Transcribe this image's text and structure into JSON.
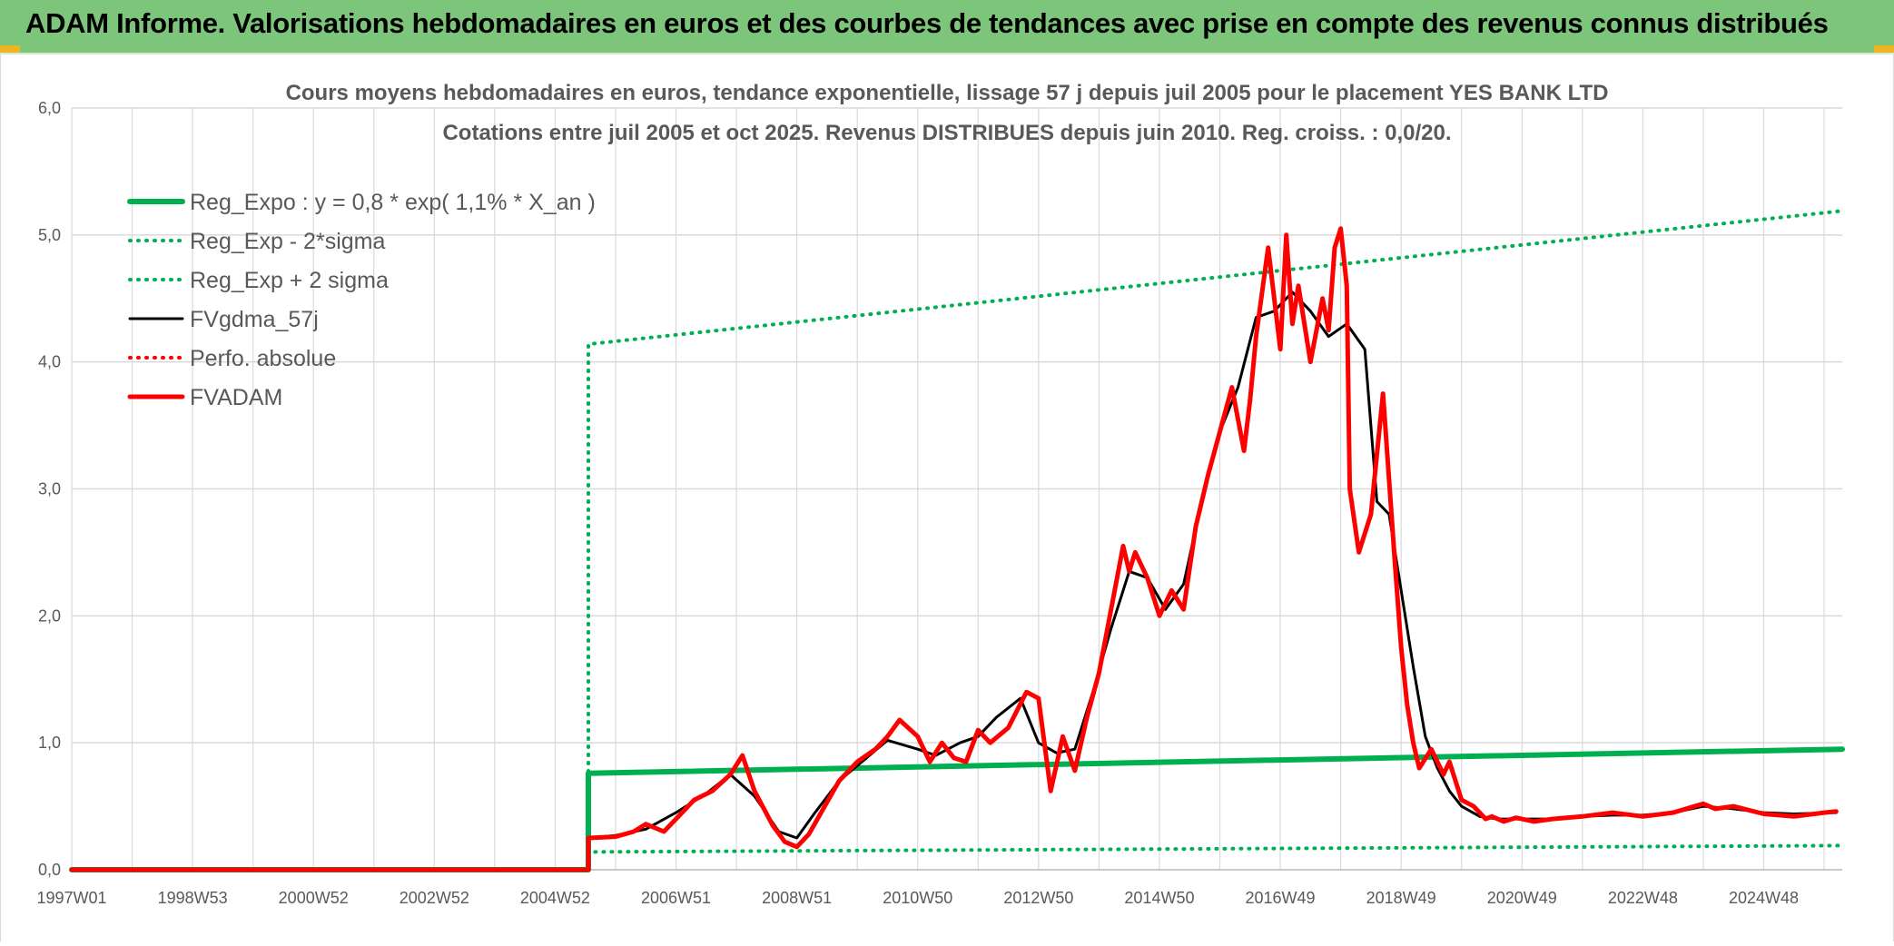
{
  "banner": {
    "title": "ADAM Informe. Valorisations hebdomadaires en euros et des courbes de tendances avec prise en compte des revenus connus distribués"
  },
  "colors": {
    "banner_bg": "#7cc57a",
    "green": "#00b050",
    "red": "#ff0000",
    "black": "#000000",
    "grid": "#d9d9d9"
  },
  "chart_data": {
    "type": "line",
    "title": "Cours moyens hebdomadaires en euros, tendance exponentielle, lissage 57 j depuis juil 2005 pour le placement YES BANK LTD",
    "subtitle": "Cotations entre juil 2005 et oct 2025. Revenus DISTRIBUES depuis juin 2010. Reg. croiss. : 0,0/20.",
    "xlabel": "",
    "ylabel": "",
    "ylim": [
      0,
      6
    ],
    "xlim": [
      1997.0,
      2026.3
    ],
    "y_ticks": [
      "0,0",
      "1,0",
      "2,0",
      "3,0",
      "4,0",
      "5,0",
      "6,0"
    ],
    "x_ticks": [
      {
        "label": "1997W01",
        "x": 1997.0
      },
      {
        "label": "1998W53",
        "x": 1999.0
      },
      {
        "label": "2000W52",
        "x": 2001.0
      },
      {
        "label": "2002W52",
        "x": 2003.0
      },
      {
        "label": "2004W52",
        "x": 2005.0
      },
      {
        "label": "2006W51",
        "x": 2007.0
      },
      {
        "label": "2008W51",
        "x": 2009.0
      },
      {
        "label": "2010W50",
        "x": 2011.0
      },
      {
        "label": "2012W50",
        "x": 2013.0
      },
      {
        "label": "2014W50",
        "x": 2015.0
      },
      {
        "label": "2016W49",
        "x": 2017.0
      },
      {
        "label": "2018W49",
        "x": 2019.0
      },
      {
        "label": "2020W49",
        "x": 2021.0
      },
      {
        "label": "2022W48",
        "x": 2023.0
      },
      {
        "label": "2024W48",
        "x": 2025.0
      }
    ],
    "grid": true,
    "legend_position": "top-left",
    "series": [
      {
        "name": "Reg_Expo : y = 0,8 * exp( 1,1% *  X_an )",
        "color": "#00b050",
        "style": "solid",
        "width": 6,
        "x": [
          1997.0,
          2005.55,
          2005.55,
          2026.3
        ],
        "y": [
          0.0,
          0.0,
          0.76,
          0.95
        ]
      },
      {
        "name": "Reg_Exp - 2*sigma",
        "color": "#00b050",
        "style": "dotted",
        "width": 4,
        "x": [
          2005.55,
          2005.55,
          2026.3
        ],
        "y": [
          0.0,
          0.14,
          0.19
        ]
      },
      {
        "name": "Reg_Exp + 2 sigma",
        "color": "#00b050",
        "style": "dotted",
        "width": 4,
        "x": [
          2005.55,
          2005.55,
          2026.3
        ],
        "y": [
          0.0,
          4.14,
          5.19
        ]
      },
      {
        "name": "FVgdma_57j",
        "color": "#000000",
        "style": "solid",
        "width": 3,
        "x": [
          2005.55,
          2006.0,
          2006.5,
          2007.0,
          2007.5,
          2007.9,
          2008.3,
          2008.7,
          2009.0,
          2009.3,
          2009.7,
          2010.0,
          2010.5,
          2011.0,
          2011.3,
          2011.7,
          2012.0,
          2012.3,
          2012.7,
          2013.0,
          2013.3,
          2013.6,
          2013.9,
          2014.2,
          2014.5,
          2014.8,
          2015.1,
          2015.4,
          2015.7,
          2016.0,
          2016.3,
          2016.6,
          2016.9,
          2017.2,
          2017.5,
          2017.8,
          2018.1,
          2018.4,
          2018.6,
          2018.8,
          2019.0,
          2019.2,
          2019.4,
          2019.6,
          2019.8,
          2020.0,
          2020.3,
          2020.6,
          2021.0,
          2021.5,
          2022.0,
          2022.5,
          2023.0,
          2023.5,
          2024.0,
          2024.5,
          2025.0,
          2025.5,
          2026.2
        ],
        "y": [
          0.25,
          0.27,
          0.32,
          0.45,
          0.6,
          0.75,
          0.58,
          0.3,
          0.25,
          0.45,
          0.7,
          0.82,
          1.02,
          0.95,
          0.9,
          1.0,
          1.05,
          1.2,
          1.35,
          1.0,
          0.92,
          0.95,
          1.4,
          1.9,
          2.35,
          2.3,
          2.05,
          2.25,
          2.9,
          3.45,
          3.8,
          4.35,
          4.4,
          4.55,
          4.4,
          4.2,
          4.3,
          4.1,
          2.9,
          2.8,
          2.2,
          1.6,
          1.05,
          0.8,
          0.62,
          0.5,
          0.42,
          0.4,
          0.4,
          0.4,
          0.42,
          0.43,
          0.43,
          0.45,
          0.5,
          0.48,
          0.45,
          0.44,
          0.45
        ]
      },
      {
        "name": "Perfo. absolue",
        "color": "#ff0000",
        "style": "dotted",
        "width": 4,
        "x": [
          1997.0,
          2005.55
        ],
        "y": [
          0.0,
          0.0
        ]
      },
      {
        "name": "FVADAM",
        "color": "#ff0000",
        "style": "solid",
        "width": 5,
        "x": [
          1997.0,
          2005.55,
          2005.55,
          2006.0,
          2006.3,
          2006.5,
          2006.8,
          2007.0,
          2007.3,
          2007.6,
          2007.9,
          2008.1,
          2008.3,
          2008.6,
          2008.8,
          2009.0,
          2009.2,
          2009.4,
          2009.7,
          2010.0,
          2010.3,
          2010.5,
          2010.7,
          2011.0,
          2011.2,
          2011.4,
          2011.6,
          2011.8,
          2012.0,
          2012.2,
          2012.5,
          2012.8,
          2013.0,
          2013.2,
          2013.4,
          2013.6,
          2013.8,
          2014.0,
          2014.2,
          2014.4,
          2014.5,
          2014.6,
          2014.8,
          2015.0,
          2015.2,
          2015.4,
          2015.6,
          2015.8,
          2016.0,
          2016.2,
          2016.4,
          2016.5,
          2016.6,
          2016.8,
          2017.0,
          2017.1,
          2017.2,
          2017.3,
          2017.5,
          2017.7,
          2017.8,
          2017.9,
          2018.0,
          2018.1,
          2018.15,
          2018.3,
          2018.5,
          2018.7,
          2018.9,
          2019.0,
          2019.1,
          2019.2,
          2019.3,
          2019.5,
          2019.7,
          2019.8,
          2020.0,
          2020.2,
          2020.4,
          2020.5,
          2020.7,
          2020.9,
          2021.2,
          2021.5,
          2022.0,
          2022.5,
          2023.0,
          2023.5,
          2024.0,
          2024.2,
          2024.5,
          2025.0,
          2025.5,
          2026.0,
          2026.2
        ],
        "y": [
          0.0,
          0.0,
          0.25,
          0.26,
          0.3,
          0.36,
          0.3,
          0.4,
          0.55,
          0.62,
          0.75,
          0.9,
          0.62,
          0.35,
          0.22,
          0.18,
          0.28,
          0.45,
          0.7,
          0.85,
          0.95,
          1.05,
          1.18,
          1.05,
          0.85,
          1.0,
          0.88,
          0.85,
          1.1,
          1.0,
          1.12,
          1.4,
          1.35,
          0.62,
          1.05,
          0.78,
          1.2,
          1.55,
          2.05,
          2.55,
          2.35,
          2.5,
          2.3,
          2.0,
          2.2,
          2.05,
          2.7,
          3.1,
          3.45,
          3.8,
          3.3,
          3.7,
          4.2,
          4.9,
          4.1,
          5.0,
          4.3,
          4.6,
          4.0,
          4.5,
          4.25,
          4.9,
          5.05,
          4.6,
          3.0,
          2.5,
          2.8,
          3.75,
          2.4,
          1.75,
          1.3,
          1.0,
          0.8,
          0.95,
          0.75,
          0.85,
          0.55,
          0.5,
          0.4,
          0.42,
          0.38,
          0.41,
          0.38,
          0.4,
          0.42,
          0.45,
          0.42,
          0.45,
          0.52,
          0.48,
          0.5,
          0.44,
          0.42,
          0.45,
          0.46
        ]
      }
    ]
  }
}
